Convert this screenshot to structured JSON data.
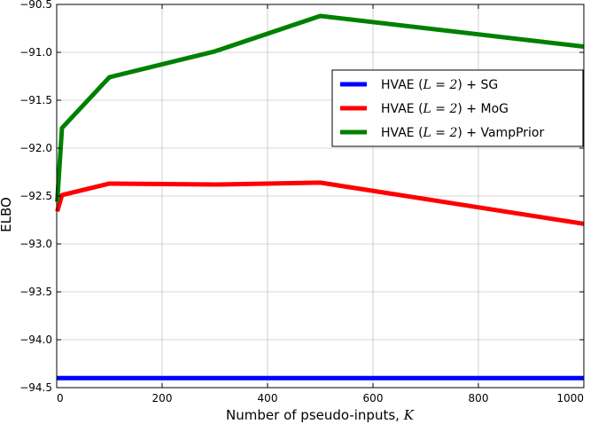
{
  "chart_data": {
    "type": "line",
    "title": "",
    "xlabel": "Number of pseudo-inputs,",
    "xlabel_var": "K",
    "ylabel": "ELBO",
    "xlim": [
      0,
      1000
    ],
    "ylim": [
      -94.5,
      -90.5
    ],
    "xticks": [
      0,
      200,
      400,
      600,
      800,
      1000
    ],
    "xtick_labels": [
      "0",
      "200",
      "400",
      "600",
      "800",
      "1000"
    ],
    "yticks": [
      -90.5,
      -91.0,
      -91.5,
      -92.0,
      -92.5,
      -93.0,
      -93.5,
      -94.0,
      -94.5
    ],
    "ytick_labels": [
      "−90.5",
      "−91.0",
      "−91.5",
      "−92.0",
      "−92.5",
      "−93.0",
      "−93.5",
      "−94.0",
      "−94.5"
    ],
    "grid": true,
    "legend_position": "right",
    "series": [
      {
        "name": "HVAE (L = 2) + SG",
        "label_pre": "HVAE (",
        "label_math": "L = 2",
        "label_post": ") + SG",
        "color": "#0000ff",
        "x": [
          0,
          1000
        ],
        "y": [
          -94.4,
          -94.4
        ]
      },
      {
        "name": "HVAE (L = 2) + MoG",
        "label_pre": "HVAE (",
        "label_math": "L = 2",
        "label_post": ") + MoG",
        "color": "#ff0000",
        "x": [
          1,
          10,
          100,
          300,
          500,
          1000
        ],
        "y": [
          -92.66,
          -92.49,
          -92.37,
          -92.38,
          -92.36,
          -92.79
        ]
      },
      {
        "name": "HVAE (L = 2) + VampPrior",
        "label_pre": "HVAE (",
        "label_math": "L = 2",
        "label_post": ") + VampPrior",
        "color": "#008000",
        "x": [
          1,
          10,
          100,
          300,
          500,
          1000
        ],
        "y": [
          -92.56,
          -91.79,
          -91.26,
          -90.99,
          -90.62,
          -90.94
        ]
      }
    ]
  }
}
